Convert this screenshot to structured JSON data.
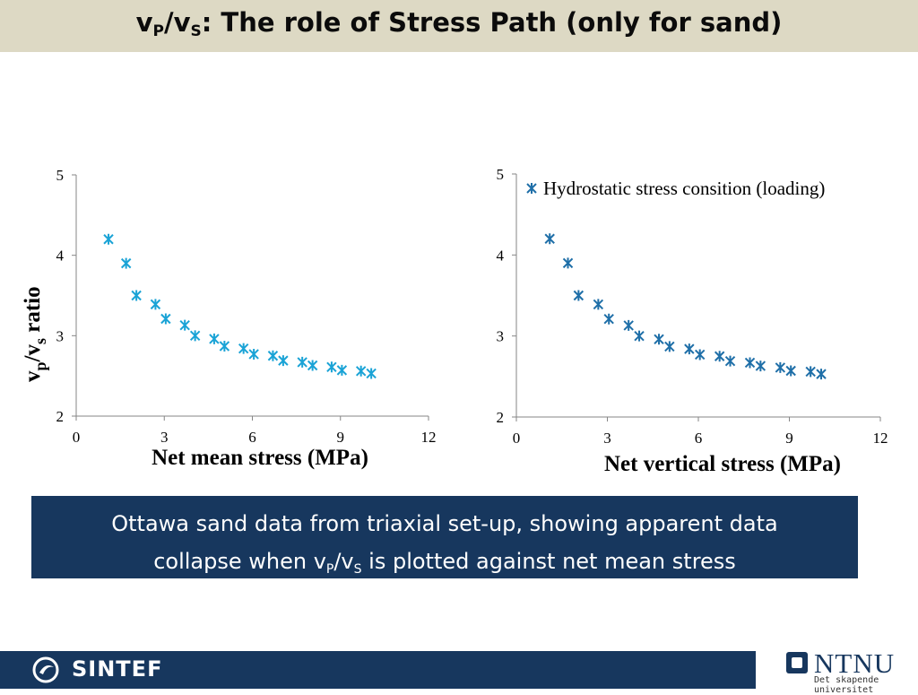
{
  "slide": {
    "title": {
      "v": "v",
      "p": "P",
      "slash": "/",
      "s": "S",
      "rest": ": The role of Stress Path (only for sand)"
    },
    "caption": {
      "line1": "Ottawa sand data from triaxial set-up, showing apparent data",
      "line2_pre": "collapse when v",
      "p": "P",
      "slash": "/v",
      "s": "S",
      "line2_post": " is plotted against net mean stress"
    },
    "footer": {
      "sintef": "SINTEF"
    },
    "ntnu": {
      "name": "NTNU",
      "tagline": "Det skapende universitet"
    }
  },
  "colors": {
    "title_bar": "#ddd9c4",
    "caption_box": "#17375e",
    "footer": "#17375e",
    "left_series": "#1aa3d6",
    "right_series": "#1f6fa8"
  },
  "chart_data": [
    {
      "type": "scatter",
      "title": "",
      "xlabel": "Net mean stress (MPa)",
      "ylabel": {
        "v1": "v",
        "sub1": "p",
        "slash": "/v",
        "sub2": "s",
        "rest": " ratio"
      },
      "xlim": [
        0,
        12
      ],
      "ylim": [
        2,
        5
      ],
      "xticks": [
        0,
        3,
        6,
        9,
        12
      ],
      "yticks": [
        2,
        3,
        4,
        5
      ],
      "xtick_labels": [
        "0",
        "3",
        "6",
        "9",
        "12"
      ],
      "ytick_labels": [
        "2",
        "3",
        "4",
        "5"
      ],
      "grid": false,
      "marker": "asterisk",
      "series": [
        {
          "color": "#1aa3d6",
          "x": [
            1.1,
            1.7,
            2.05,
            2.7,
            3.05,
            3.7,
            4.05,
            4.7,
            5.05,
            5.7,
            6.05,
            6.7,
            7.05,
            7.7,
            8.05,
            8.7,
            9.05,
            9.7,
            10.05
          ],
          "y": [
            4.2,
            3.9,
            3.5,
            3.39,
            3.21,
            3.13,
            3.0,
            2.96,
            2.87,
            2.84,
            2.77,
            2.75,
            2.69,
            2.67,
            2.63,
            2.61,
            2.57,
            2.56,
            2.53
          ]
        }
      ]
    },
    {
      "type": "scatter",
      "title": "",
      "xlabel": "Net vertical stress (MPa)",
      "ylabel": "",
      "xlim": [
        0,
        12
      ],
      "ylim": [
        2,
        5
      ],
      "xticks": [
        0,
        3,
        6,
        9,
        12
      ],
      "yticks": [
        2,
        3,
        4,
        5
      ],
      "xtick_labels": [
        "0",
        "3",
        "6",
        "9",
        "12"
      ],
      "ytick_labels": [
        "2",
        "3",
        "4",
        "5"
      ],
      "grid": false,
      "marker": "asterisk",
      "legend_position": "top-right",
      "series": [
        {
          "name": "Hydrostatic stress consition (loading)",
          "color": "#1f6fa8",
          "x": [
            1.1,
            1.7,
            2.05,
            2.7,
            3.05,
            3.7,
            4.05,
            4.7,
            5.05,
            5.7,
            6.05,
            6.7,
            7.05,
            7.7,
            8.05,
            8.7,
            9.05,
            9.7,
            10.05
          ],
          "y": [
            4.2,
            3.9,
            3.5,
            3.39,
            3.21,
            3.13,
            3.0,
            2.96,
            2.87,
            2.84,
            2.77,
            2.75,
            2.69,
            2.67,
            2.63,
            2.61,
            2.57,
            2.56,
            2.53
          ]
        }
      ]
    }
  ]
}
